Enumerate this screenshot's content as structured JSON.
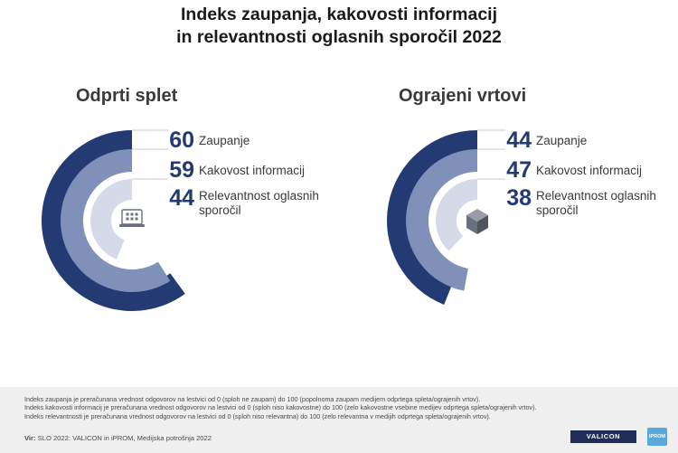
{
  "title": {
    "line1": "Indeks zaupanja, kakovosti informacij",
    "line2": "in relevantnosti oglasnih sporočil 2022"
  },
  "colors": {
    "ring_outer": "#243a73",
    "ring_middle": "#8090b8",
    "ring_inner": "#d6dae8",
    "value_text": "#243a73"
  },
  "chart_data": [
    {
      "type": "radial-bar",
      "title": "Odprti splet",
      "max": 100,
      "icon": "laptop-icon",
      "series": [
        {
          "name": "Zaupanje",
          "value": 60
        },
        {
          "name": "Kakovost informacij",
          "value": 59
        },
        {
          "name": "Relevantnost oglasnih sporočil",
          "value": 44
        }
      ]
    },
    {
      "type": "radial-bar",
      "title": "Ograjeni vrtovi",
      "max": 100,
      "icon": "cube-icon",
      "series": [
        {
          "name": "Zaupanje",
          "value": 44
        },
        {
          "name": "Kakovost informacij",
          "value": 47
        },
        {
          "name": "Relevantnost oglasnih sporočil",
          "value": 38
        }
      ]
    }
  ],
  "labels": {
    "line1": "Relevantnost oglasnih",
    "line2": "sporočil"
  },
  "notes": [
    "Indeks zaupanja je preračunana vrednost odgovorov na lestvici od 0 (sploh ne zaupam) do 100 (popolnoma zaupam medijem odprtega spleta/ograjenih vrtov).",
    "Indeks kakovosti informacij je preračunana vrednost odgovorov na lestvici od 0 (sploh niso kakovostne) do 100 (zelo kakovostne vsebine medijev odprtega spleta/ograjenih vrtov).",
    "Indeks relevantnosti je preračunana vrednost odgovorov na lestvici od 0 (sploh niso relevantna) do 100 (zelo relevantna v medijih odprtega spleta/ograjenih vrtov)."
  ],
  "source": {
    "label": "Vir:",
    "text": "SLO 2022: VALICON in iPROM, Medijska potrošnja 2022"
  },
  "logos": {
    "valicon": "VALICON",
    "iprom": "iPROM"
  }
}
